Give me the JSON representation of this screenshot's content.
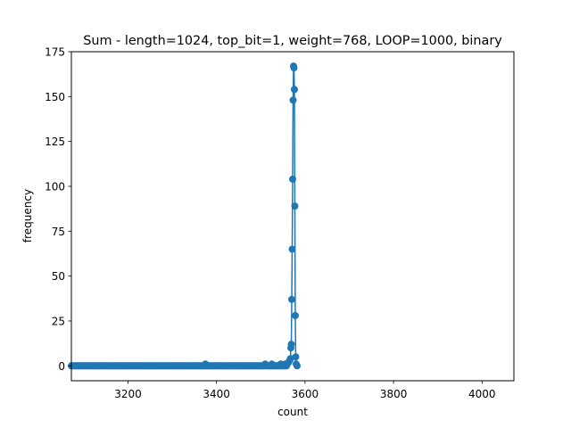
{
  "chart_data": {
    "type": "line",
    "title": "Sum - length=1024, top_bit=1, weight=768, LOOP=1000, binary",
    "xlabel": "count",
    "ylabel": "frequency",
    "xlim": [
      3072,
      4072
    ],
    "ylim": [
      -8.3,
      175
    ],
    "x_ticks": [
      3200,
      3400,
      3600,
      3800,
      4000
    ],
    "y_ticks": [
      0,
      25,
      50,
      75,
      100,
      125,
      150,
      175
    ],
    "grid": false,
    "legend": "none",
    "colors": {
      "series": "#1f77b4",
      "axes": "#000000",
      "background": "#ffffff"
    },
    "series": [
      {
        "baseline": {
          "x_start": 3072,
          "x_end": 3560,
          "value": 0,
          "markers_every": 2
        },
        "x": [
          3375,
          3510,
          3525,
          3545,
          3555,
          3560,
          3563,
          3565,
          3567,
          3568,
          3569,
          3570,
          3571,
          3572,
          3573,
          3574,
          3575,
          3576,
          3577,
          3578,
          3579,
          3580,
          3582
        ],
        "values": [
          1,
          1,
          1,
          1,
          1,
          1,
          2,
          3,
          4,
          10,
          12,
          37,
          65,
          104,
          148,
          167,
          166,
          154,
          89,
          28,
          5,
          1,
          0
        ]
      }
    ]
  }
}
